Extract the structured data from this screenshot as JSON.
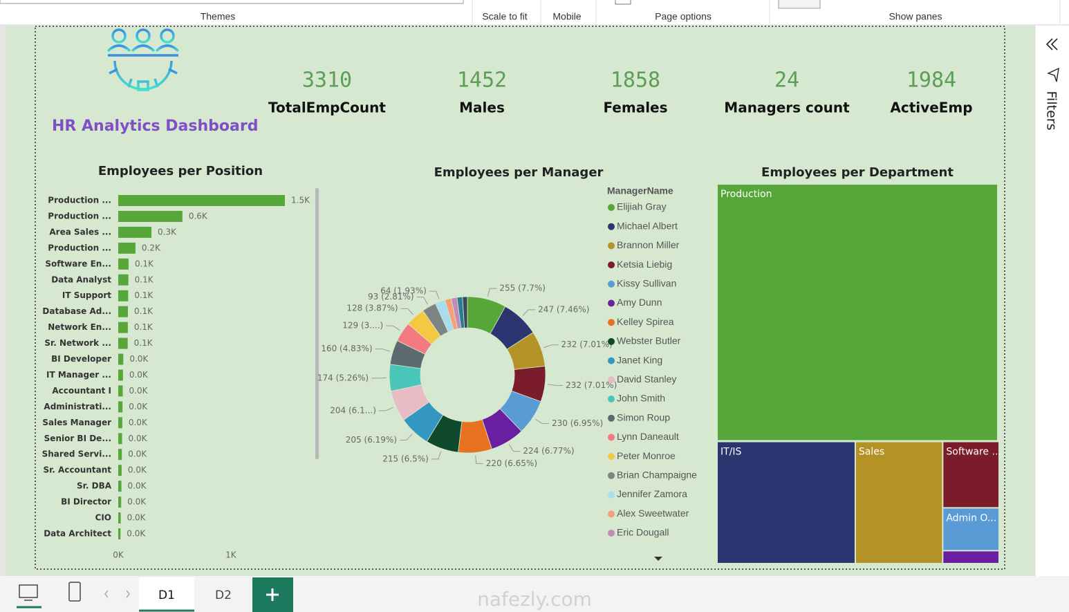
{
  "ribbon": {
    "groups": [
      "Themes",
      "Scale to fit",
      "Mobile",
      "Page options",
      "Show panes"
    ]
  },
  "header": {
    "title": "HR Analytics Dashboard"
  },
  "kpis": [
    {
      "value": 3310,
      "label": "TotalEmpCount"
    },
    {
      "value": 1452,
      "label": "Males"
    },
    {
      "value": 1858,
      "label": "Females"
    },
    {
      "value": 24,
      "label": "Managers count"
    },
    {
      "value": 1984,
      "label": "ActiveEmp"
    }
  ],
  "position_chart": {
    "type": "bar",
    "title": "Employees per Position",
    "categories": [
      "Production ...",
      "Production ...",
      "Area Sales ...",
      "Production ...",
      "Software En...",
      "Data Analyst",
      "IT Support",
      "Database Ad...",
      "Network En...",
      "Sr. Network ...",
      "BI Developer",
      "IT Manager ...",
      "Accountant I",
      "Administrati...",
      "Sales Manager",
      "Senior BI De...",
      "Shared Servi...",
      "Sr. Accountant",
      "Sr. DBA",
      "BI Director",
      "CIO",
      "Data Architect"
    ],
    "values": [
      1480,
      570,
      295,
      153,
      92,
      90,
      88,
      86,
      85,
      84,
      45,
      42,
      40,
      38,
      36,
      34,
      32,
      30,
      28,
      26,
      22,
      20
    ],
    "value_labels": [
      "1.5K",
      "0.6K",
      "0.3K",
      "0.2K",
      "0.1K",
      "0.1K",
      "0.1K",
      "0.1K",
      "0.1K",
      "0.1K",
      "0.0K",
      "0.0K",
      "0.0K",
      "0.0K",
      "0.0K",
      "0.0K",
      "0.0K",
      "0.0K",
      "0.0K",
      "0.0K",
      "0.0K",
      "0.0K"
    ],
    "color": "#57a639",
    "xlim": [
      0,
      1750
    ],
    "xticks": [
      {
        "value": 0,
        "label": "0K"
      },
      {
        "value": 1000,
        "label": "1K"
      }
    ]
  },
  "manager_chart": {
    "type": "donut",
    "title": "Employees per Manager",
    "legend_title": "ManagerName",
    "categories": [
      "Elijiah Gray",
      "Michael Albert",
      "Brannon Miller",
      "Ketsia Liebig",
      "Kissy Sullivan",
      "Amy Dunn",
      "Kelley Spirea",
      "Webster Butler",
      "Janet King",
      "David Stanley",
      "John Smith",
      "Simon Roup",
      "Lynn Daneault",
      "Peter Monroe",
      "Brian Champaigne",
      "Jennifer Zamora",
      "Alex Sweetwater",
      "Eric Dougall",
      null,
      null
    ],
    "values": [
      255,
      247,
      232,
      232,
      230,
      224,
      220,
      215,
      205,
      204,
      174,
      160,
      129,
      128,
      93,
      64,
      42,
      38,
      36,
      32
    ],
    "value_labels": [
      "255 (7.7%)",
      "247 (7.46%)",
      "232 (7.01%)",
      "232 (7.01%)",
      "230 (6.95%)",
      "224 (6.77%)",
      "220 (6.65%)",
      "215 (6.5%)",
      "205 (6.19%)",
      "204 (6.1...)",
      "174 (5.26%)",
      "160 (4.83%)",
      "129 (3....)",
      "128 (3.87%)",
      "93 (2.81%)",
      "64 (1.93%)",
      null,
      null,
      null,
      null
    ],
    "colors": [
      "#57a639",
      "#2b3570",
      "#b59226",
      "#7b1c2a",
      "#5b9bd5",
      "#6a1fa0",
      "#e8721f",
      "#0f4a2c",
      "#3497c0",
      "#e8bcc4",
      "#49c6b9",
      "#5e6b6e",
      "#f27a80",
      "#f5c842",
      "#7b8585",
      "#a8dcef",
      "#f6a07a",
      "#c28bb7",
      "#2b7d94",
      "#3a4a55"
    ]
  },
  "department_chart": {
    "type": "treemap",
    "title": "Employees per Department",
    "categories": [
      "Production",
      "IT/IS",
      "Sales",
      "Software ...",
      "Admin O...",
      null
    ],
    "values": [
      2230,
      522,
      330,
      113,
      73,
      22
    ],
    "colors": [
      "#57a639",
      "#2b3570",
      "#b59226",
      "#7b1c2a",
      "#5b9bd5",
      "#6a1fa0"
    ]
  },
  "pane": {
    "title": "Filters"
  },
  "tabs": [
    "D1",
    "D2"
  ],
  "watermark": "nafezly.com"
}
